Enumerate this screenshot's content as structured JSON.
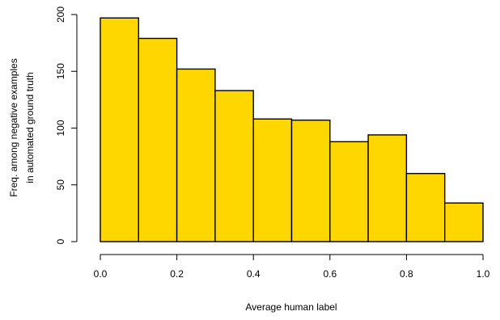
{
  "chart_data": {
    "type": "bar",
    "histogram": true,
    "bin_edges": [
      0.0,
      0.1,
      0.2,
      0.3,
      0.4,
      0.5,
      0.6,
      0.7,
      0.8,
      0.9,
      1.0
    ],
    "values": [
      197,
      179,
      152,
      133,
      108,
      107,
      88,
      94,
      60,
      34
    ],
    "xlabel": "Average human label",
    "ylabel_lines": [
      "Freq. among negative examples",
      "in automated ground truth"
    ],
    "xlim": [
      0.0,
      1.0
    ],
    "ylim": [
      0,
      200
    ],
    "x_ticks": [
      "0.0",
      "0.2",
      "0.4",
      "0.6",
      "0.8",
      "1.0"
    ],
    "x_tick_values": [
      0.0,
      0.2,
      0.4,
      0.6,
      0.8,
      1.0
    ],
    "y_ticks": [
      "0",
      "50",
      "100",
      "150",
      "200"
    ],
    "y_tick_values": [
      0,
      50,
      100,
      150,
      200
    ],
    "grid": false,
    "legend": "none",
    "bar_color": "#FFD700",
    "edge_color": "#000000"
  }
}
